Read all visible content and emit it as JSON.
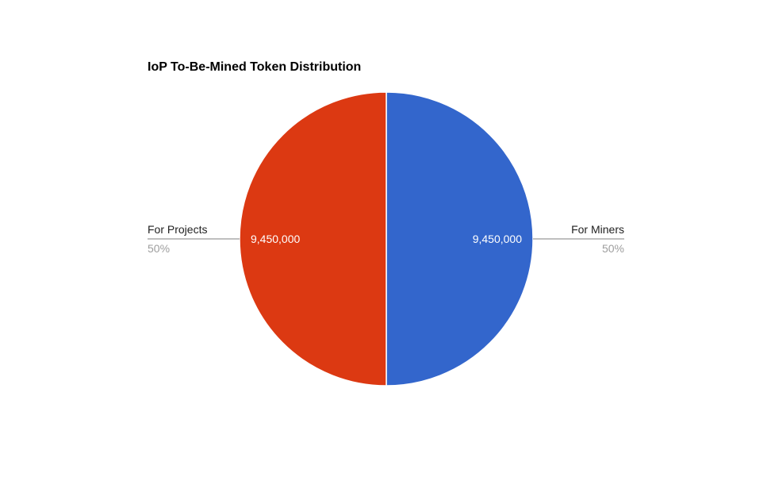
{
  "chart_data": {
    "type": "pie",
    "title": "IoP To-Be-Mined Token Distribution",
    "slices": [
      {
        "name": "For Miners",
        "value": 9450000,
        "value_label": "9,450,000",
        "percent_label": "50%",
        "color": "#3366cc"
      },
      {
        "name": "For Projects",
        "value": 9450000,
        "value_label": "9,450,000",
        "percent_label": "50%",
        "color": "#dc3912"
      }
    ],
    "legend": "labeled-lines",
    "start_angle_deg": 0,
    "direction": "clockwise"
  }
}
